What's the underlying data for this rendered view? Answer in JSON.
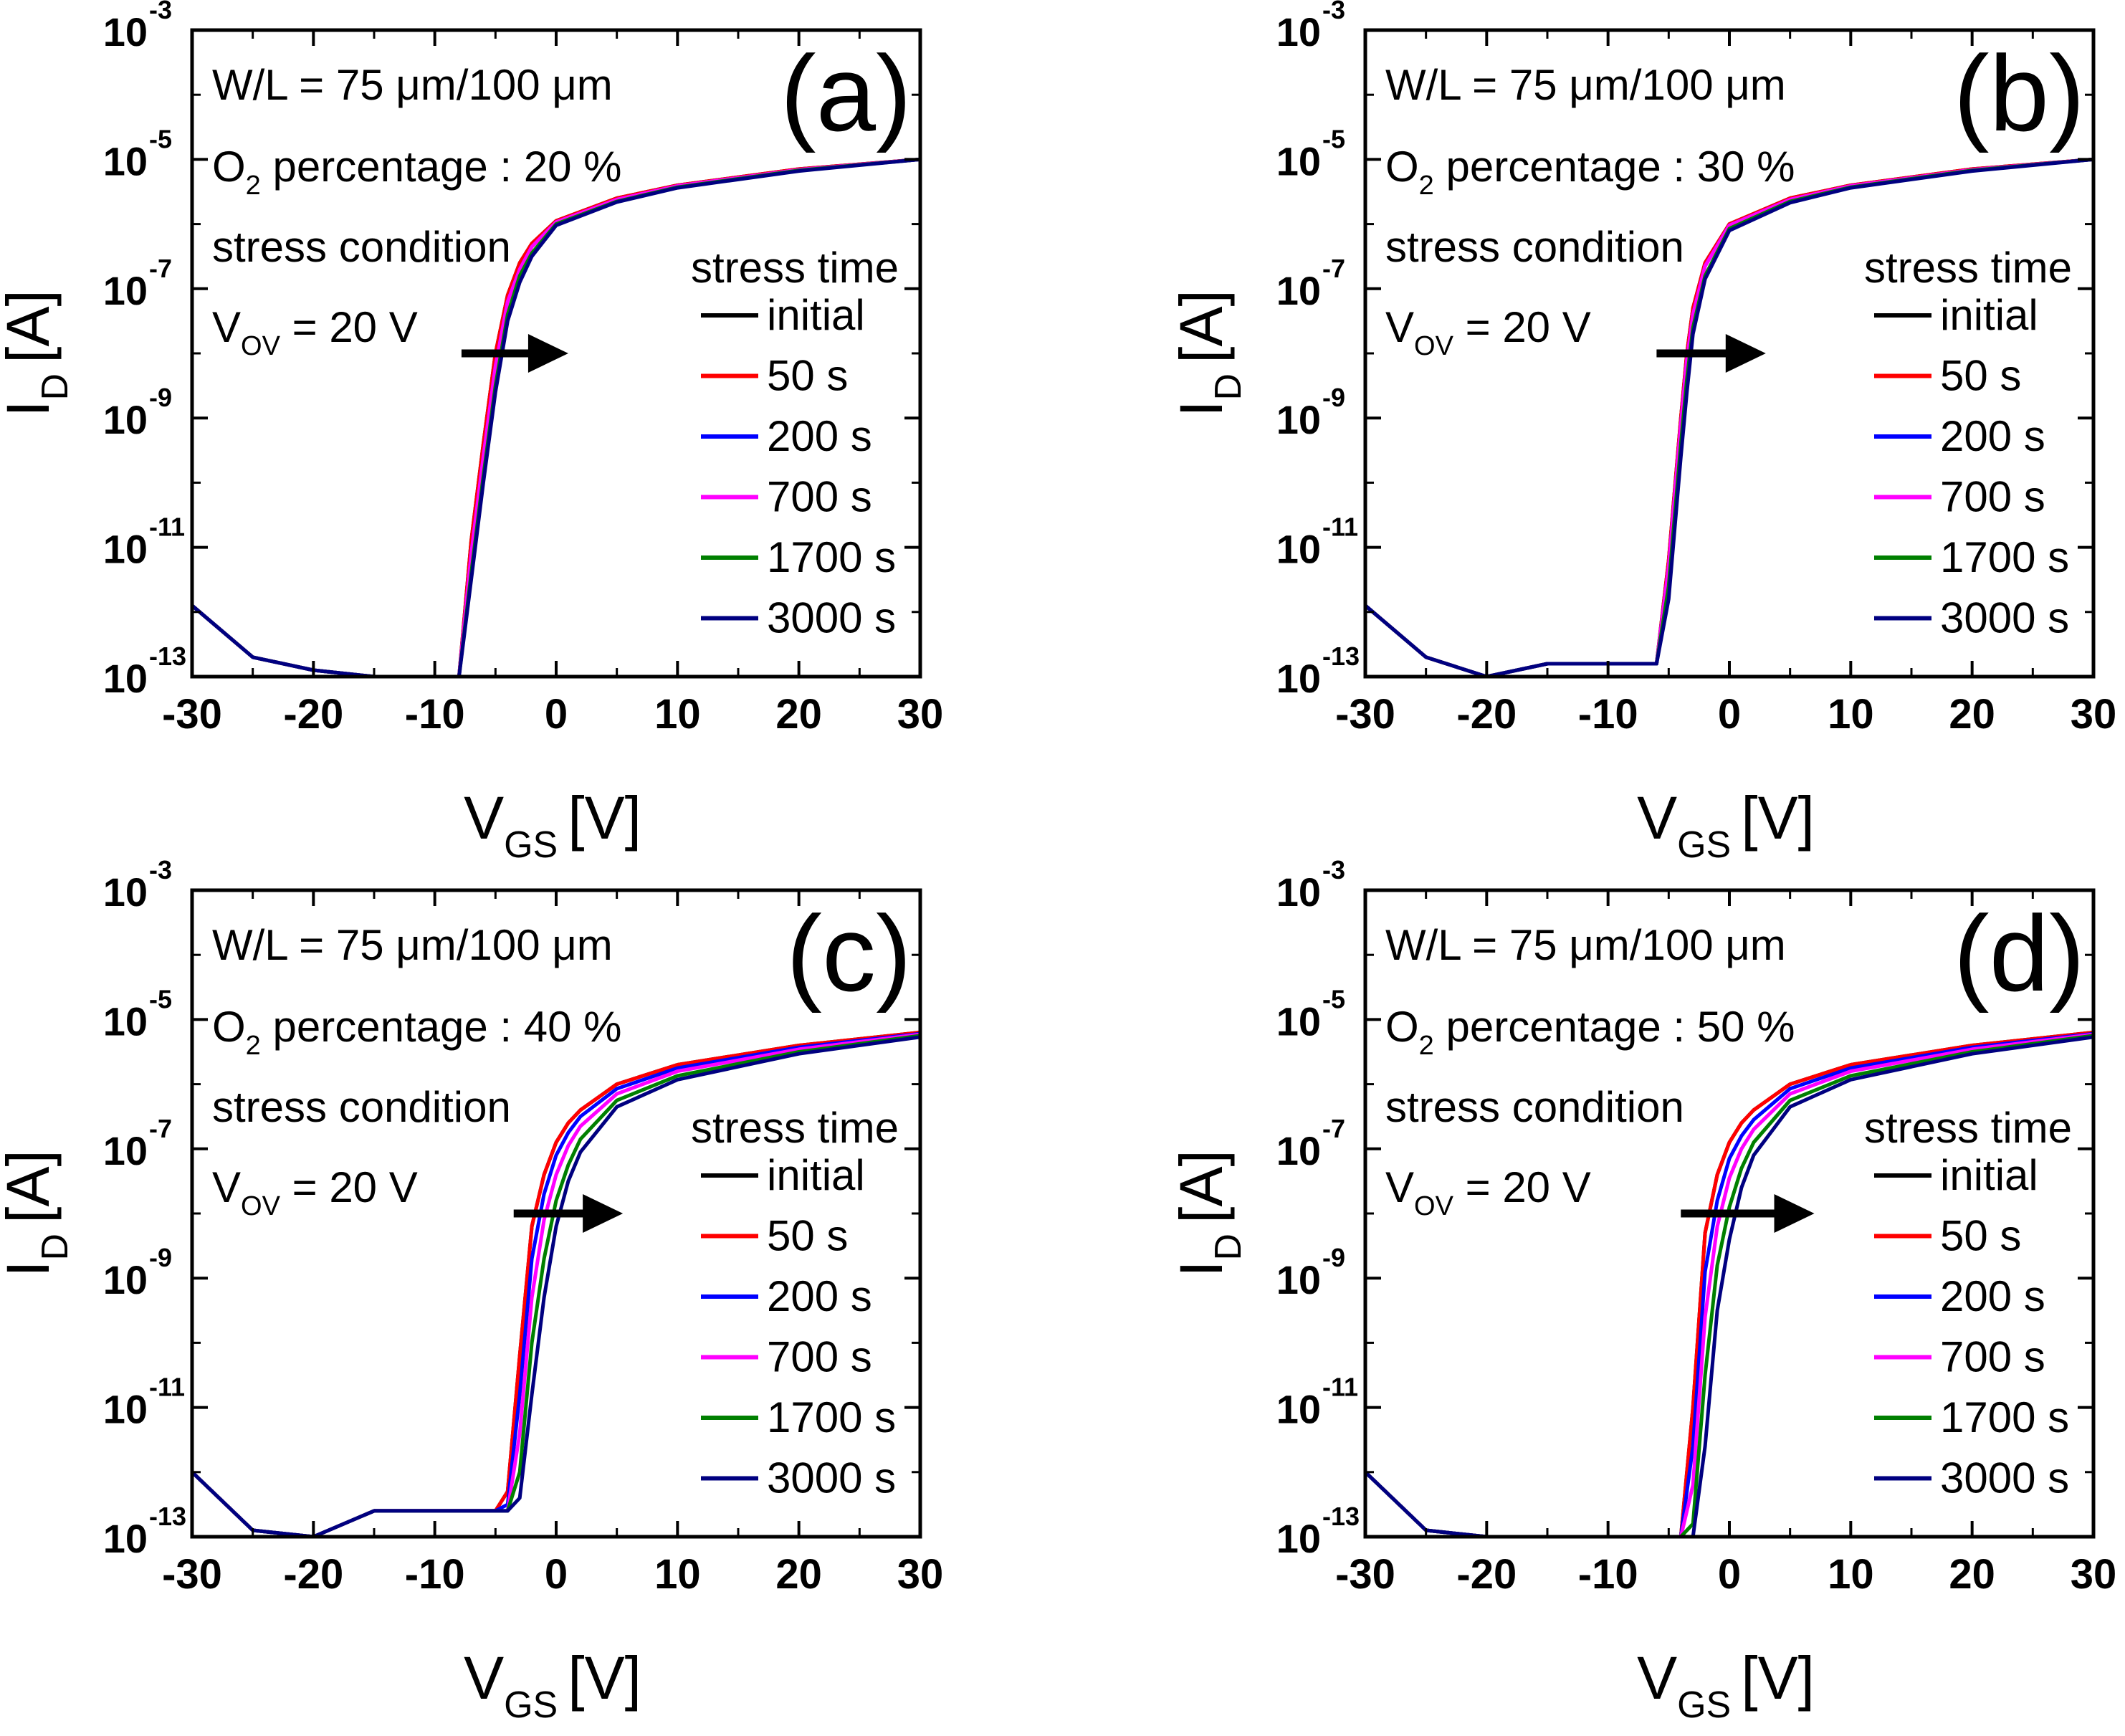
{
  "figure": {
    "legend_title": "stress time",
    "axis_labels": {
      "x_main": "V",
      "x_sub": "GS",
      "x_unit": "[V]",
      "y_main": "I",
      "y_sub": "D",
      "y_unit": "[A]"
    },
    "annotations": {
      "wl": "W/L = 75 μm/100 μm",
      "o2_prefix": "O",
      "o2_sub": "2",
      "o2_middle": " percentage : ",
      "stress_condition": "stress condition",
      "vov_main": "V",
      "vov_sub": "OV",
      "vov_value": " = 20 V"
    },
    "x_ticks": [
      "-30",
      "-20",
      "-10",
      "0",
      "10",
      "20",
      "30"
    ],
    "y_ticks": [
      {
        "base": "10",
        "exp": "-13"
      },
      {
        "base": "10",
        "exp": "-11"
      },
      {
        "base": "10",
        "exp": "-9"
      },
      {
        "base": "10",
        "exp": "-7"
      },
      {
        "base": "10",
        "exp": "-5"
      },
      {
        "base": "10",
        "exp": "-3"
      }
    ]
  },
  "chart_data": [
    {
      "type": "line",
      "panel_label": "(a)",
      "o2_percent": "20 %",
      "xlabel": "VGS [V]",
      "ylabel": "ID [A]",
      "xlim": [
        -30,
        30
      ],
      "ylim_log10": [
        -13,
        -3
      ],
      "x": [
        -30,
        -25,
        -20,
        -15,
        -10,
        -8,
        -7,
        -6,
        -5,
        -4,
        -3,
        -2,
        0,
        5,
        10,
        20,
        30
      ],
      "series": [
        {
          "name": "initial",
          "color": "#000000",
          "log10_id": [
            -11.9,
            -12.7,
            -12.9,
            -13.0,
            -13.0,
            -13.0,
            -10.9,
            -9.4,
            -8.0,
            -7.1,
            -6.6,
            -6.3,
            -5.95,
            -5.6,
            -5.4,
            -5.15,
            -5.0
          ]
        },
        {
          "name": "50 s",
          "color": "#ff0000",
          "log10_id": [
            -11.9,
            -12.7,
            -12.9,
            -13.0,
            -13.0,
            -13.0,
            -10.9,
            -9.4,
            -8.0,
            -7.1,
            -6.6,
            -6.3,
            -5.95,
            -5.6,
            -5.4,
            -5.15,
            -5.0
          ]
        },
        {
          "name": "200 s",
          "color": "#0000ff",
          "log10_id": [
            -11.9,
            -12.7,
            -12.9,
            -13.0,
            -13.0,
            -13.0,
            -11.1,
            -9.6,
            -8.2,
            -7.2,
            -6.7,
            -6.35,
            -5.97,
            -5.62,
            -5.41,
            -5.16,
            -5.0
          ]
        },
        {
          "name": "700 s",
          "color": "#ff00ff",
          "log10_id": [
            -11.9,
            -12.7,
            -12.9,
            -13.0,
            -13.0,
            -13.0,
            -11.1,
            -9.6,
            -8.2,
            -7.2,
            -6.7,
            -6.35,
            -5.97,
            -5.62,
            -5.41,
            -5.16,
            -5.0
          ]
        },
        {
          "name": "1700 s",
          "color": "#008000",
          "log10_id": [
            -11.9,
            -12.7,
            -12.9,
            -13.0,
            -13.0,
            -13.0,
            -11.4,
            -9.9,
            -8.5,
            -7.4,
            -6.8,
            -6.45,
            -6.0,
            -5.65,
            -5.43,
            -5.17,
            -5.0
          ]
        },
        {
          "name": "3000 s",
          "color": "#000080",
          "log10_id": [
            -11.9,
            -12.7,
            -12.9,
            -13.0,
            -13.0,
            -13.0,
            -11.5,
            -10.0,
            -8.6,
            -7.5,
            -6.9,
            -6.5,
            -6.02,
            -5.66,
            -5.44,
            -5.18,
            -5.0
          ]
        }
      ]
    },
    {
      "type": "line",
      "panel_label": "(b)",
      "o2_percent": "30 %",
      "xlabel": "VGS [V]",
      "ylabel": "ID [A]",
      "xlim": [
        -30,
        30
      ],
      "ylim_log10": [
        -13,
        -3
      ],
      "x": [
        -30,
        -25,
        -20,
        -15,
        -10,
        -6,
        -5,
        -4,
        -3.5,
        -3,
        -2,
        0,
        5,
        10,
        20,
        30
      ],
      "series": [
        {
          "name": "initial",
          "color": "#000000",
          "log10_id": [
            -11.9,
            -12.7,
            -13.0,
            -12.8,
            -12.8,
            -12.8,
            -11.2,
            -9.0,
            -8.0,
            -7.3,
            -6.6,
            -6.0,
            -5.6,
            -5.4,
            -5.15,
            -5.0
          ]
        },
        {
          "name": "50 s",
          "color": "#ff0000",
          "log10_id": [
            -11.9,
            -12.7,
            -13.0,
            -12.8,
            -12.8,
            -12.8,
            -11.2,
            -9.0,
            -8.0,
            -7.3,
            -6.6,
            -6.0,
            -5.6,
            -5.4,
            -5.15,
            -5.0
          ]
        },
        {
          "name": "200 s",
          "color": "#0000ff",
          "log10_id": [
            -11.9,
            -12.7,
            -13.0,
            -12.8,
            -12.8,
            -12.8,
            -11.3,
            -9.1,
            -8.1,
            -7.4,
            -6.65,
            -6.02,
            -5.62,
            -5.41,
            -5.16,
            -5.0
          ]
        },
        {
          "name": "700 s",
          "color": "#ff00ff",
          "log10_id": [
            -11.9,
            -12.7,
            -13.0,
            -12.8,
            -12.8,
            -12.8,
            -11.3,
            -9.1,
            -8.1,
            -7.4,
            -6.65,
            -6.02,
            -5.62,
            -5.41,
            -5.16,
            -5.0
          ]
        },
        {
          "name": "1700 s",
          "color": "#008000",
          "log10_id": [
            -11.9,
            -12.7,
            -13.0,
            -12.8,
            -12.8,
            -12.8,
            -11.6,
            -9.4,
            -8.4,
            -7.6,
            -6.8,
            -6.07,
            -5.65,
            -5.43,
            -5.17,
            -5.0
          ]
        },
        {
          "name": "3000 s",
          "color": "#000080",
          "log10_id": [
            -11.9,
            -12.7,
            -13.0,
            -12.8,
            -12.8,
            -12.8,
            -11.8,
            -9.6,
            -8.6,
            -7.7,
            -6.85,
            -6.1,
            -5.67,
            -5.44,
            -5.18,
            -5.0
          ]
        }
      ]
    },
    {
      "type": "line",
      "panel_label": "(c)",
      "o2_percent": "40 %",
      "xlabel": "VGS [V]",
      "ylabel": "ID [A]",
      "xlim": [
        -30,
        30
      ],
      "ylim_log10": [
        -13,
        -3
      ],
      "x": [
        -30,
        -25,
        -20,
        -15,
        -10,
        -5,
        -4,
        -3,
        -2,
        -1,
        0,
        1,
        2,
        5,
        10,
        20,
        30
      ],
      "series": [
        {
          "name": "initial",
          "color": "#000000",
          "log10_id": [
            -12.0,
            -12.9,
            -13.0,
            -12.6,
            -12.6,
            -12.6,
            -12.3,
            -10.2,
            -8.2,
            -7.4,
            -6.9,
            -6.6,
            -6.4,
            -6.0,
            -5.7,
            -5.4,
            -5.2
          ]
        },
        {
          "name": "50 s",
          "color": "#ff0000",
          "log10_id": [
            -12.0,
            -12.9,
            -13.0,
            -12.6,
            -12.6,
            -12.6,
            -12.3,
            -10.2,
            -8.2,
            -7.4,
            -6.9,
            -6.6,
            -6.4,
            -6.0,
            -5.7,
            -5.4,
            -5.2
          ]
        },
        {
          "name": "200 s",
          "color": "#0000ff",
          "log10_id": [
            -12.0,
            -12.9,
            -13.0,
            -12.6,
            -12.6,
            -12.6,
            -12.5,
            -10.8,
            -8.7,
            -7.7,
            -7.1,
            -6.75,
            -6.5,
            -6.07,
            -5.75,
            -5.43,
            -5.22
          ]
        },
        {
          "name": "700 s",
          "color": "#ff00ff",
          "log10_id": [
            -12.0,
            -12.9,
            -13.0,
            -12.6,
            -12.6,
            -12.6,
            -12.6,
            -11.4,
            -9.3,
            -8.1,
            -7.4,
            -6.95,
            -6.65,
            -6.15,
            -5.8,
            -5.46,
            -5.23
          ]
        },
        {
          "name": "1700 s",
          "color": "#008000",
          "log10_id": [
            -12.0,
            -12.9,
            -13.0,
            -12.6,
            -12.6,
            -12.6,
            -12.6,
            -12.0,
            -10.0,
            -8.7,
            -7.8,
            -7.25,
            -6.85,
            -6.25,
            -5.87,
            -5.5,
            -5.25
          ]
        },
        {
          "name": "3000 s",
          "color": "#000080",
          "log10_id": [
            -12.0,
            -12.9,
            -13.0,
            -12.6,
            -12.6,
            -12.6,
            -12.6,
            -12.4,
            -10.8,
            -9.3,
            -8.2,
            -7.5,
            -7.05,
            -6.35,
            -5.93,
            -5.53,
            -5.27
          ]
        }
      ]
    },
    {
      "type": "line",
      "panel_label": "(d)",
      "o2_percent": "50 %",
      "xlabel": "VGS [V]",
      "ylabel": "ID [A]",
      "xlim": [
        -30,
        30
      ],
      "ylim_log10": [
        -13,
        -3
      ],
      "x": [
        -30,
        -25,
        -20,
        -15,
        -10,
        -5,
        -4,
        -3,
        -2,
        -1,
        0,
        1,
        2,
        5,
        10,
        20,
        30
      ],
      "series": [
        {
          "name": "initial",
          "color": "#000000",
          "log10_id": [
            -12.0,
            -12.9,
            -13.0,
            -13.0,
            -13.0,
            -13.0,
            -13.0,
            -11.0,
            -8.3,
            -7.4,
            -6.9,
            -6.6,
            -6.4,
            -6.0,
            -5.7,
            -5.4,
            -5.2
          ]
        },
        {
          "name": "50 s",
          "color": "#ff0000",
          "log10_id": [
            -12.0,
            -12.9,
            -13.0,
            -13.0,
            -13.0,
            -13.0,
            -13.0,
            -11.0,
            -8.3,
            -7.4,
            -6.9,
            -6.6,
            -6.4,
            -6.0,
            -5.7,
            -5.4,
            -5.2
          ]
        },
        {
          "name": "200 s",
          "color": "#0000ff",
          "log10_id": [
            -12.0,
            -12.9,
            -13.0,
            -13.0,
            -13.0,
            -13.0,
            -13.0,
            -11.6,
            -8.9,
            -7.8,
            -7.15,
            -6.8,
            -6.55,
            -6.07,
            -5.75,
            -5.43,
            -5.22
          ]
        },
        {
          "name": "700 s",
          "color": "#ff00ff",
          "log10_id": [
            -12.0,
            -12.9,
            -13.0,
            -13.0,
            -13.0,
            -13.0,
            -13.0,
            -12.2,
            -9.6,
            -8.2,
            -7.45,
            -7.0,
            -6.7,
            -6.15,
            -5.8,
            -5.46,
            -5.23
          ]
        },
        {
          "name": "1700 s",
          "color": "#008000",
          "log10_id": [
            -12.0,
            -12.9,
            -13.0,
            -13.0,
            -13.0,
            -13.0,
            -13.0,
            -12.8,
            -10.5,
            -8.8,
            -7.9,
            -7.3,
            -6.9,
            -6.25,
            -5.87,
            -5.5,
            -5.25
          ]
        },
        {
          "name": "3000 s",
          "color": "#000080",
          "log10_id": [
            -12.0,
            -12.9,
            -13.0,
            -13.0,
            -13.0,
            -13.0,
            -13.0,
            -13.0,
            -11.6,
            -9.5,
            -8.4,
            -7.6,
            -7.1,
            -6.35,
            -5.93,
            -5.53,
            -5.27
          ]
        }
      ]
    }
  ]
}
